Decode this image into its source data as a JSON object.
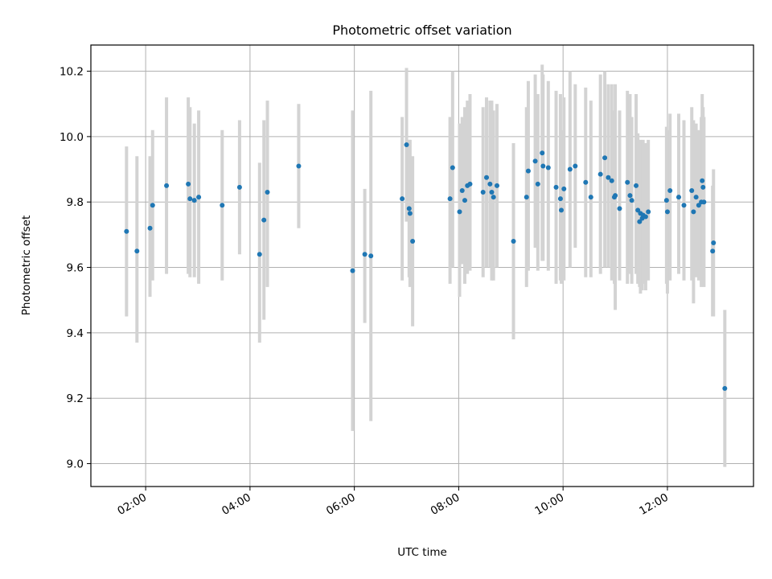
{
  "chart_data": {
    "type": "scatter",
    "title": "Photometric offset variation",
    "xlabel": "UTC time",
    "ylabel": "Photometric offset",
    "x_ticks": [
      "02:00",
      "04:00",
      "06:00",
      "08:00",
      "10:00",
      "12:00"
    ],
    "y_ticks": [
      "9.0",
      "9.2",
      "9.4",
      "9.6",
      "9.8",
      "10.0",
      "10.2"
    ],
    "x_range_hours": [
      0.95,
      13.65
    ],
    "ylim": [
      8.93,
      10.28
    ],
    "grid": true,
    "colors": {
      "point": "#1f77b4",
      "errorbar": "#d3d3d3",
      "grid": "#b0b0b0"
    },
    "series": [
      {
        "x": [
          "01:38",
          "01:50",
          "02:05",
          "02:08",
          "02:24",
          "02:49",
          "02:51",
          "02:56",
          "03:01",
          "03:28",
          "03:48",
          "04:11",
          "04:16",
          "04:20",
          "04:56",
          "05:58",
          "06:12",
          "06:19",
          "06:55",
          "07:00",
          "07:03",
          "07:04",
          "07:07",
          "07:50",
          "07:53",
          "08:01",
          "08:04",
          "08:07",
          "08:10",
          "08:13",
          "08:28",
          "08:32",
          "08:36",
          "08:38",
          "08:40",
          "08:44",
          "09:03",
          "09:18",
          "09:20",
          "09:28",
          "09:31",
          "09:36",
          "09:37",
          "09:43",
          "09:52",
          "09:57",
          "09:58",
          "10:01",
          "10:08",
          "10:14",
          "10:26",
          "10:32",
          "10:43",
          "10:48",
          "10:52",
          "10:56",
          "10:59",
          "11:00",
          "11:05",
          "11:14",
          "11:17",
          "11:19",
          "11:24",
          "11:26",
          "11:28",
          "11:29",
          "11:31",
          "11:32",
          "11:35",
          "11:38",
          "11:59",
          "12:00",
          "12:03",
          "12:13",
          "12:19",
          "12:28",
          "12:30",
          "12:33",
          "12:36",
          "12:39",
          "12:40",
          "12:41",
          "12:42",
          "12:52",
          "12:53",
          "13:06"
        ],
        "y": [
          9.71,
          9.65,
          9.72,
          9.79,
          9.85,
          9.855,
          9.81,
          9.805,
          9.815,
          9.79,
          9.845,
          9.64,
          9.745,
          9.83,
          9.91,
          9.59,
          9.64,
          9.635,
          9.81,
          9.975,
          9.78,
          9.765,
          9.68,
          9.81,
          9.905,
          9.77,
          9.835,
          9.805,
          9.85,
          9.855,
          9.83,
          9.875,
          9.855,
          9.83,
          9.815,
          9.85,
          9.68,
          9.815,
          9.895,
          9.925,
          9.855,
          9.95,
          9.91,
          9.905,
          9.845,
          9.81,
          9.775,
          9.84,
          9.9,
          9.91,
          9.86,
          9.815,
          9.885,
          9.935,
          9.875,
          9.865,
          9.815,
          9.82,
          9.78,
          9.86,
          9.82,
          9.805,
          9.85,
          9.775,
          9.74,
          9.765,
          9.75,
          9.76,
          9.755,
          9.77,
          9.805,
          9.77,
          9.835,
          9.815,
          9.79,
          9.835,
          9.77,
          9.815,
          9.79,
          9.8,
          9.865,
          9.845,
          9.8,
          9.65,
          9.675,
          9.23
        ],
        "y_low": [
          9.45,
          9.37,
          9.51,
          9.56,
          9.58,
          9.58,
          9.57,
          9.57,
          9.55,
          9.56,
          9.64,
          9.37,
          9.44,
          9.54,
          9.72,
          9.1,
          9.43,
          9.13,
          9.56,
          9.74,
          9.57,
          9.54,
          9.42,
          9.55,
          9.6,
          9.51,
          9.61,
          9.55,
          9.58,
          9.59,
          9.57,
          9.6,
          9.6,
          9.56,
          9.56,
          9.6,
          9.38,
          9.54,
          9.59,
          9.66,
          9.59,
          9.62,
          9.62,
          9.59,
          9.55,
          9.56,
          9.55,
          9.56,
          9.6,
          9.66,
          9.57,
          9.57,
          9.58,
          9.6,
          9.6,
          9.56,
          9.55,
          9.47,
          9.56,
          9.55,
          9.58,
          9.55,
          9.58,
          9.55,
          9.54,
          9.52,
          9.53,
          9.55,
          9.53,
          9.56,
          9.55,
          9.52,
          9.56,
          9.58,
          9.56,
          9.56,
          9.49,
          9.57,
          9.56,
          9.54,
          9.6,
          9.6,
          9.54,
          9.45,
          9.45,
          8.99
        ],
        "y_high": [
          9.97,
          9.94,
          9.94,
          10.02,
          10.12,
          10.12,
          10.09,
          10.04,
          10.08,
          10.02,
          10.05,
          9.92,
          10.05,
          10.11,
          10.1,
          10.08,
          9.84,
          10.14,
          10.06,
          10.21,
          9.99,
          9.99,
          9.94,
          10.06,
          10.2,
          10.04,
          10.06,
          10.09,
          10.11,
          10.13,
          10.09,
          10.12,
          10.11,
          10.11,
          10.08,
          10.1,
          9.98,
          10.09,
          10.17,
          10.19,
          10.13,
          10.22,
          10.19,
          10.17,
          10.14,
          10.13,
          10.02,
          10.12,
          10.2,
          10.16,
          10.15,
          10.11,
          10.19,
          10.2,
          10.16,
          10.16,
          10.08,
          10.16,
          10.08,
          10.14,
          10.13,
          10.06,
          10.13,
          10.01,
          9.96,
          9.99,
          9.98,
          9.99,
          9.98,
          9.99,
          10.03,
          10.02,
          10.07,
          10.07,
          10.05,
          10.09,
          10.05,
          10.04,
          10.02,
          10.06,
          10.13,
          10.09,
          10.06,
          9.85,
          9.9,
          9.47
        ]
      }
    ]
  }
}
